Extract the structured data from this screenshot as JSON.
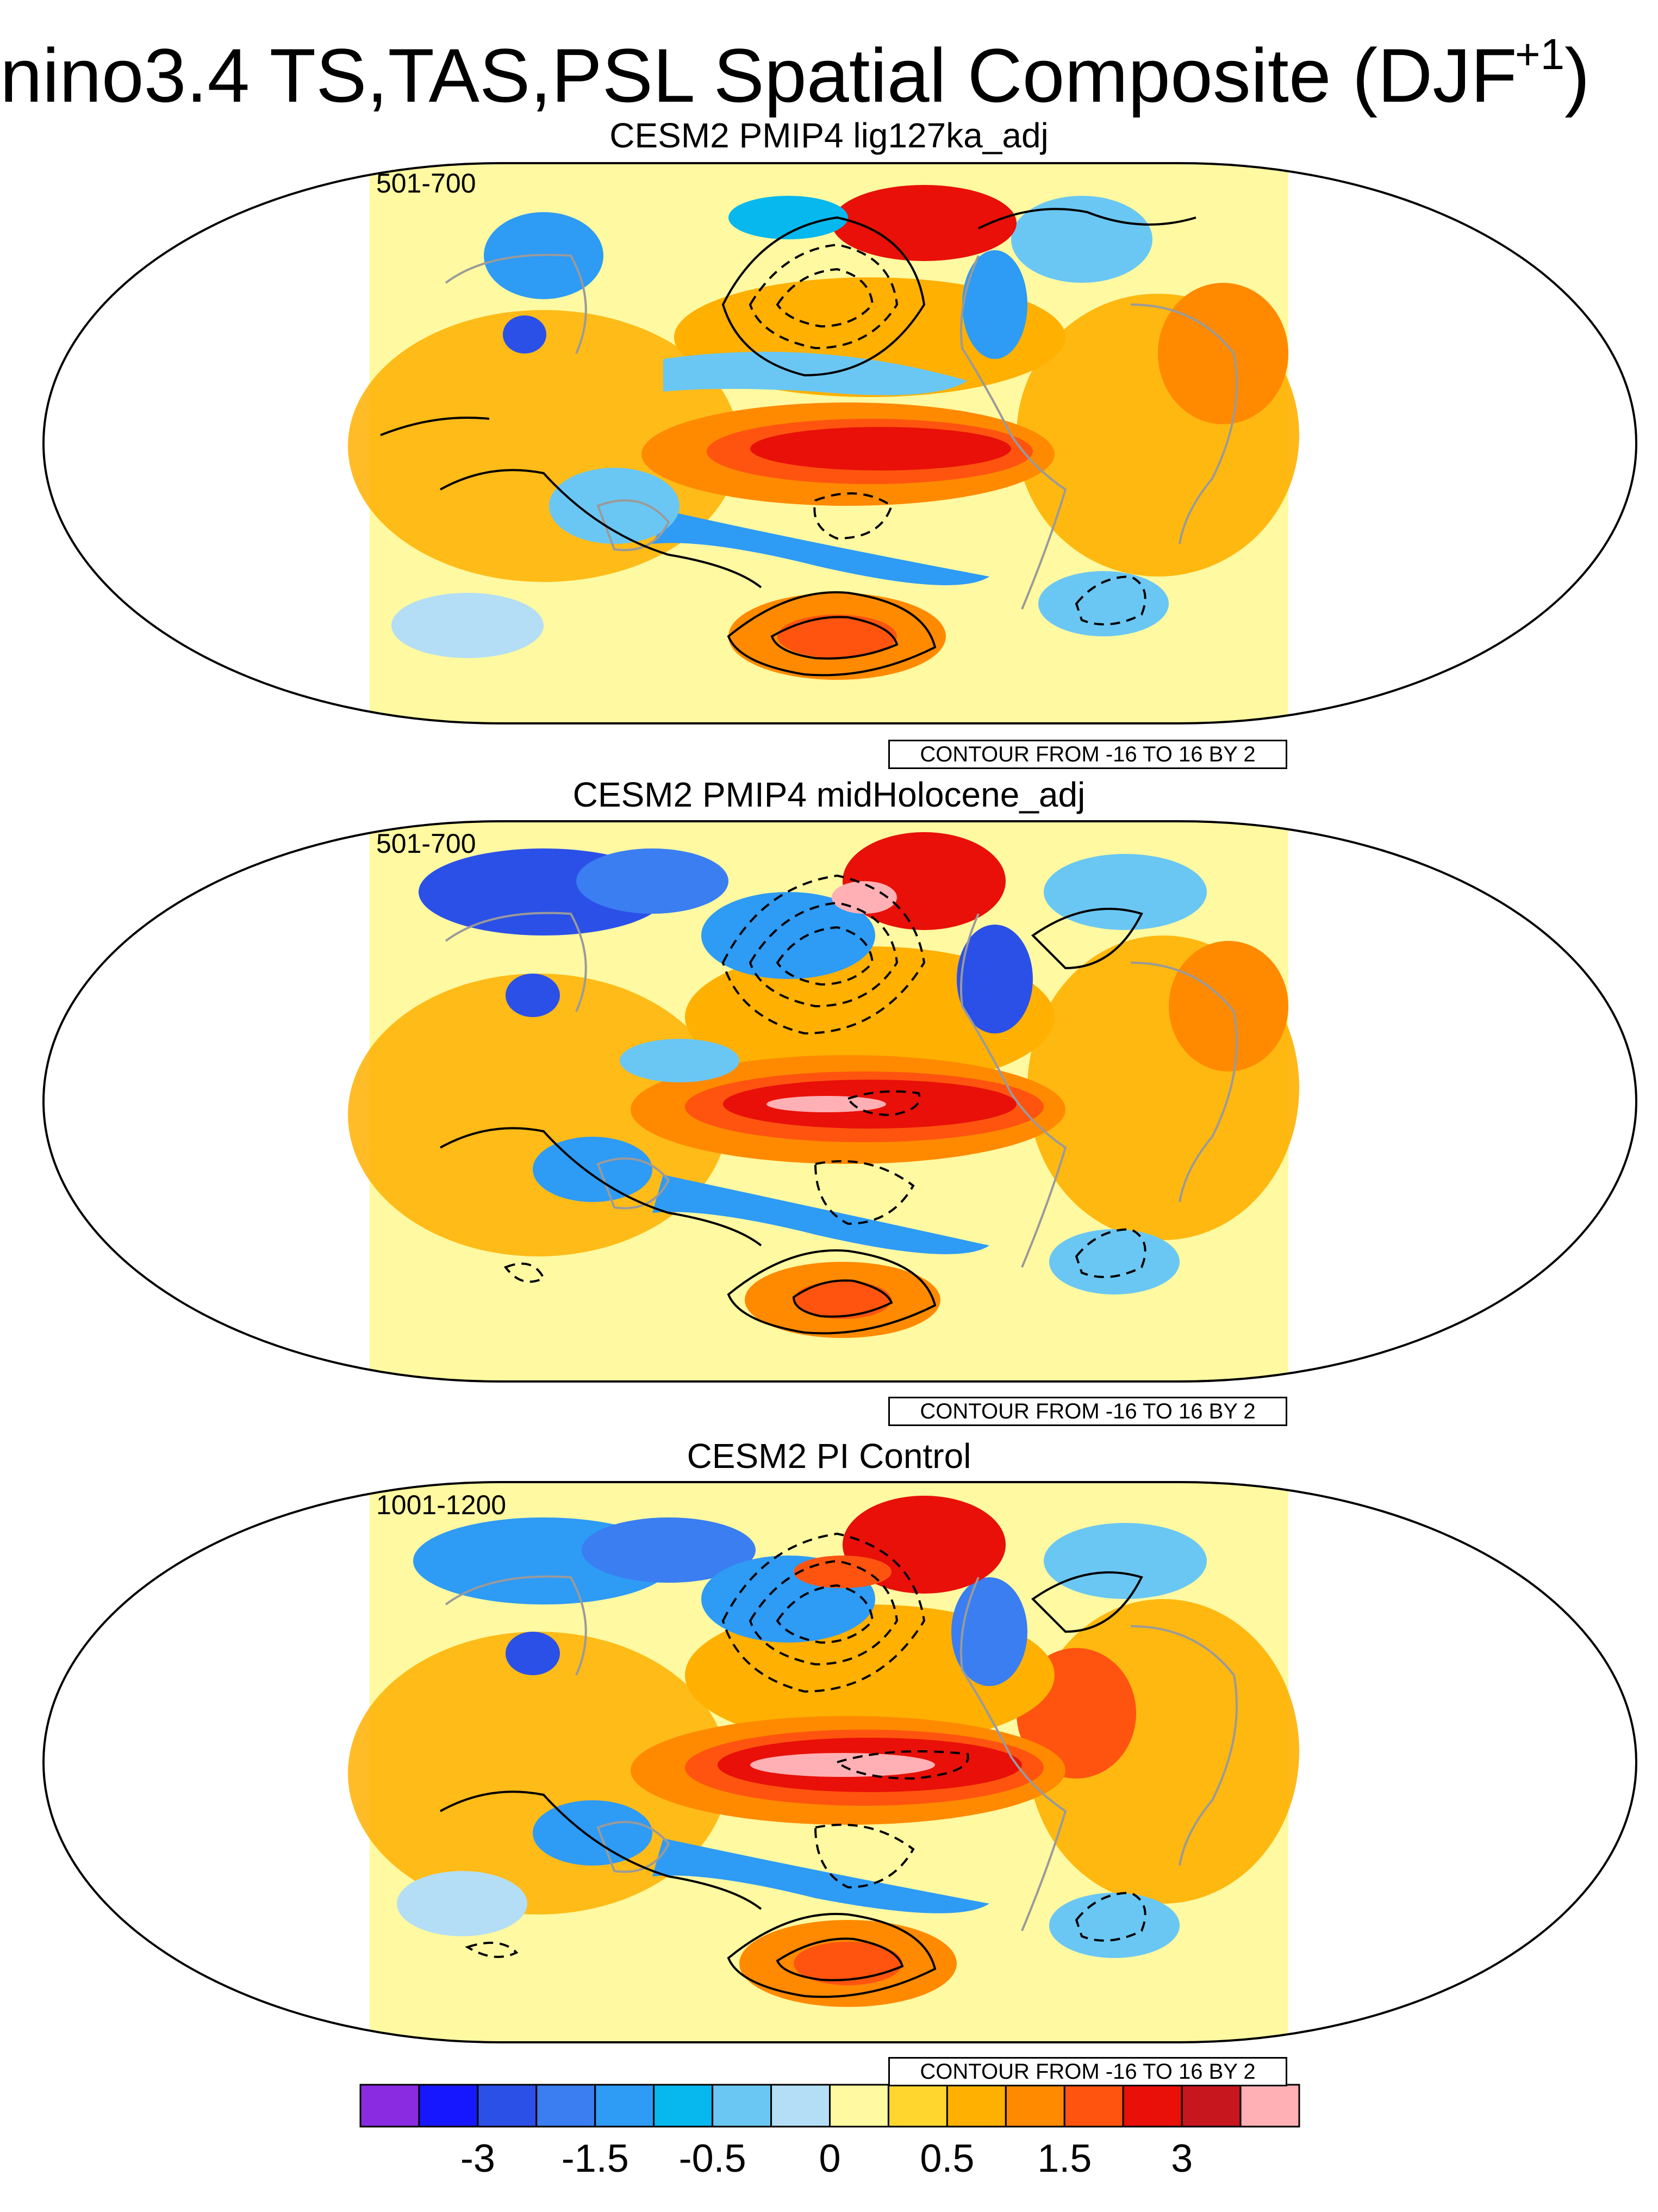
{
  "figure": {
    "title_text": "nino3.4 TS,TAS,PSL Spatial Composite (DJF",
    "title_sup": "+1",
    "title_close": ")"
  },
  "panels": [
    {
      "title": "CESM2 PMIP4 lig127ka_adj",
      "period": "501-700",
      "contour_info": "CONTOUR FROM -16 TO 16 BY 2"
    },
    {
      "title": "CESM2 PMIP4 midHolocene_adj",
      "period": "501-700",
      "contour_info": "CONTOUR FROM -16 TO 16 BY 2"
    },
    {
      "title": "CESM2 PI Control",
      "period": "1001-1200",
      "contour_info": "CONTOUR FROM -16 TO 16 BY 2"
    }
  ],
  "colorbar": {
    "colors": [
      "#8a2be2",
      "#1717ff",
      "#2b50e8",
      "#3a7ef2",
      "#2e9bf5",
      "#07b8ef",
      "#6ac7f3",
      "#b3def5",
      "#fff9a1",
      "#ffd62e",
      "#ffb000",
      "#ff8a00",
      "#ff5410",
      "#e81008",
      "#c8161e",
      "#ffb0b4"
    ],
    "tick_labels": [
      {
        "label": "-3",
        "index": 2
      },
      {
        "label": "-1.5",
        "index": 4
      },
      {
        "label": "-0.5",
        "index": 6
      },
      {
        "label": "0",
        "index": 8
      },
      {
        "label": "0.5",
        "index": 10
      },
      {
        "label": "1.5",
        "index": 12
      },
      {
        "label": "3",
        "index": 14
      }
    ]
  },
  "palette": {
    "land_outline": "#9a9a9a",
    "contour": "#000000"
  }
}
